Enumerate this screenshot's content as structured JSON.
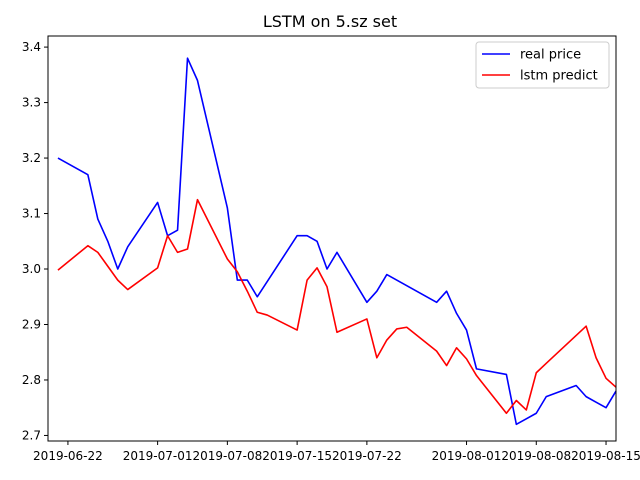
{
  "chart_data": {
    "type": "line",
    "title": "LSTM on 5.sz set",
    "xlabel": "",
    "ylabel": "",
    "x_axis_type": "date",
    "xlim": [
      "2019-06-20",
      "2019-08-16"
    ],
    "ylim": [
      2.69,
      3.42
    ],
    "x_ticks": [
      "2019-06-22",
      "2019-07-01",
      "2019-07-08",
      "2019-07-15",
      "2019-07-22",
      "2019-08-01",
      "2019-08-08",
      "2019-08-15"
    ],
    "y_ticks": [
      "2.7",
      "2.8",
      "2.9",
      "3.0",
      "3.1",
      "3.2",
      "3.3",
      "3.4"
    ],
    "legend_position": "top-right",
    "grid": false,
    "series": [
      {
        "name": "real price",
        "color": "#0000ff",
        "points": [
          [
            "2019-06-21",
            3.2
          ],
          [
            "2019-06-24",
            3.17
          ],
          [
            "2019-06-25",
            3.09
          ],
          [
            "2019-06-26",
            3.05
          ],
          [
            "2019-06-27",
            3.0
          ],
          [
            "2019-06-28",
            3.04
          ],
          [
            "2019-07-01",
            3.12
          ],
          [
            "2019-07-02",
            3.06
          ],
          [
            "2019-07-03",
            3.07
          ],
          [
            "2019-07-04",
            3.38
          ],
          [
            "2019-07-05",
            3.34
          ],
          [
            "2019-07-08",
            3.11
          ],
          [
            "2019-07-09",
            2.98
          ],
          [
            "2019-07-10",
            2.98
          ],
          [
            "2019-07-11",
            2.95
          ],
          [
            "2019-07-15",
            3.06
          ],
          [
            "2019-07-16",
            3.06
          ],
          [
            "2019-07-17",
            3.05
          ],
          [
            "2019-07-18",
            3.0
          ],
          [
            "2019-07-19",
            3.03
          ],
          [
            "2019-07-22",
            2.94
          ],
          [
            "2019-07-23",
            2.96
          ],
          [
            "2019-07-24",
            2.99
          ],
          [
            "2019-07-29",
            2.94
          ],
          [
            "2019-07-30",
            2.96
          ],
          [
            "2019-07-31",
            2.92
          ],
          [
            "2019-08-01",
            2.89
          ],
          [
            "2019-08-02",
            2.82
          ],
          [
            "2019-08-05",
            2.81
          ],
          [
            "2019-08-06",
            2.72
          ],
          [
            "2019-08-07",
            2.73
          ],
          [
            "2019-08-08",
            2.74
          ],
          [
            "2019-08-09",
            2.77
          ],
          [
            "2019-08-12",
            2.79
          ],
          [
            "2019-08-13",
            2.77
          ],
          [
            "2019-08-14",
            2.76
          ],
          [
            "2019-08-15",
            2.75
          ],
          [
            "2019-08-16",
            2.78
          ]
        ]
      },
      {
        "name": "lstm predict",
        "color": "#ff0000",
        "points": [
          [
            "2019-06-21",
            2.998
          ],
          [
            "2019-06-24",
            3.042
          ],
          [
            "2019-06-25",
            3.03
          ],
          [
            "2019-06-26",
            3.005
          ],
          [
            "2019-06-27",
            2.98
          ],
          [
            "2019-06-28",
            2.963
          ],
          [
            "2019-07-01",
            3.002
          ],
          [
            "2019-07-02",
            3.06
          ],
          [
            "2019-07-03",
            3.03
          ],
          [
            "2019-07-04",
            3.036
          ],
          [
            "2019-07-05",
            3.125
          ],
          [
            "2019-07-08",
            3.018
          ],
          [
            "2019-07-09",
            2.995
          ],
          [
            "2019-07-10",
            2.96
          ],
          [
            "2019-07-11",
            2.922
          ],
          [
            "2019-07-12",
            2.917
          ],
          [
            "2019-07-15",
            2.89
          ],
          [
            "2019-07-16",
            2.98
          ],
          [
            "2019-07-17",
            3.002
          ],
          [
            "2019-07-18",
            2.968
          ],
          [
            "2019-07-19",
            2.886
          ],
          [
            "2019-07-22",
            2.91
          ],
          [
            "2019-07-23",
            2.84
          ],
          [
            "2019-07-24",
            2.872
          ],
          [
            "2019-07-25",
            2.892
          ],
          [
            "2019-07-26",
            2.895
          ],
          [
            "2019-07-29",
            2.852
          ],
          [
            "2019-07-30",
            2.826
          ],
          [
            "2019-07-31",
            2.858
          ],
          [
            "2019-08-01",
            2.838
          ],
          [
            "2019-08-02",
            2.808
          ],
          [
            "2019-08-05",
            2.74
          ],
          [
            "2019-08-06",
            2.763
          ],
          [
            "2019-08-07",
            2.746
          ],
          [
            "2019-08-08",
            2.813
          ],
          [
            "2019-08-09",
            2.83
          ],
          [
            "2019-08-13",
            2.897
          ],
          [
            "2019-08-14",
            2.84
          ],
          [
            "2019-08-15",
            2.803
          ],
          [
            "2019-08-16",
            2.787
          ]
        ]
      }
    ]
  }
}
